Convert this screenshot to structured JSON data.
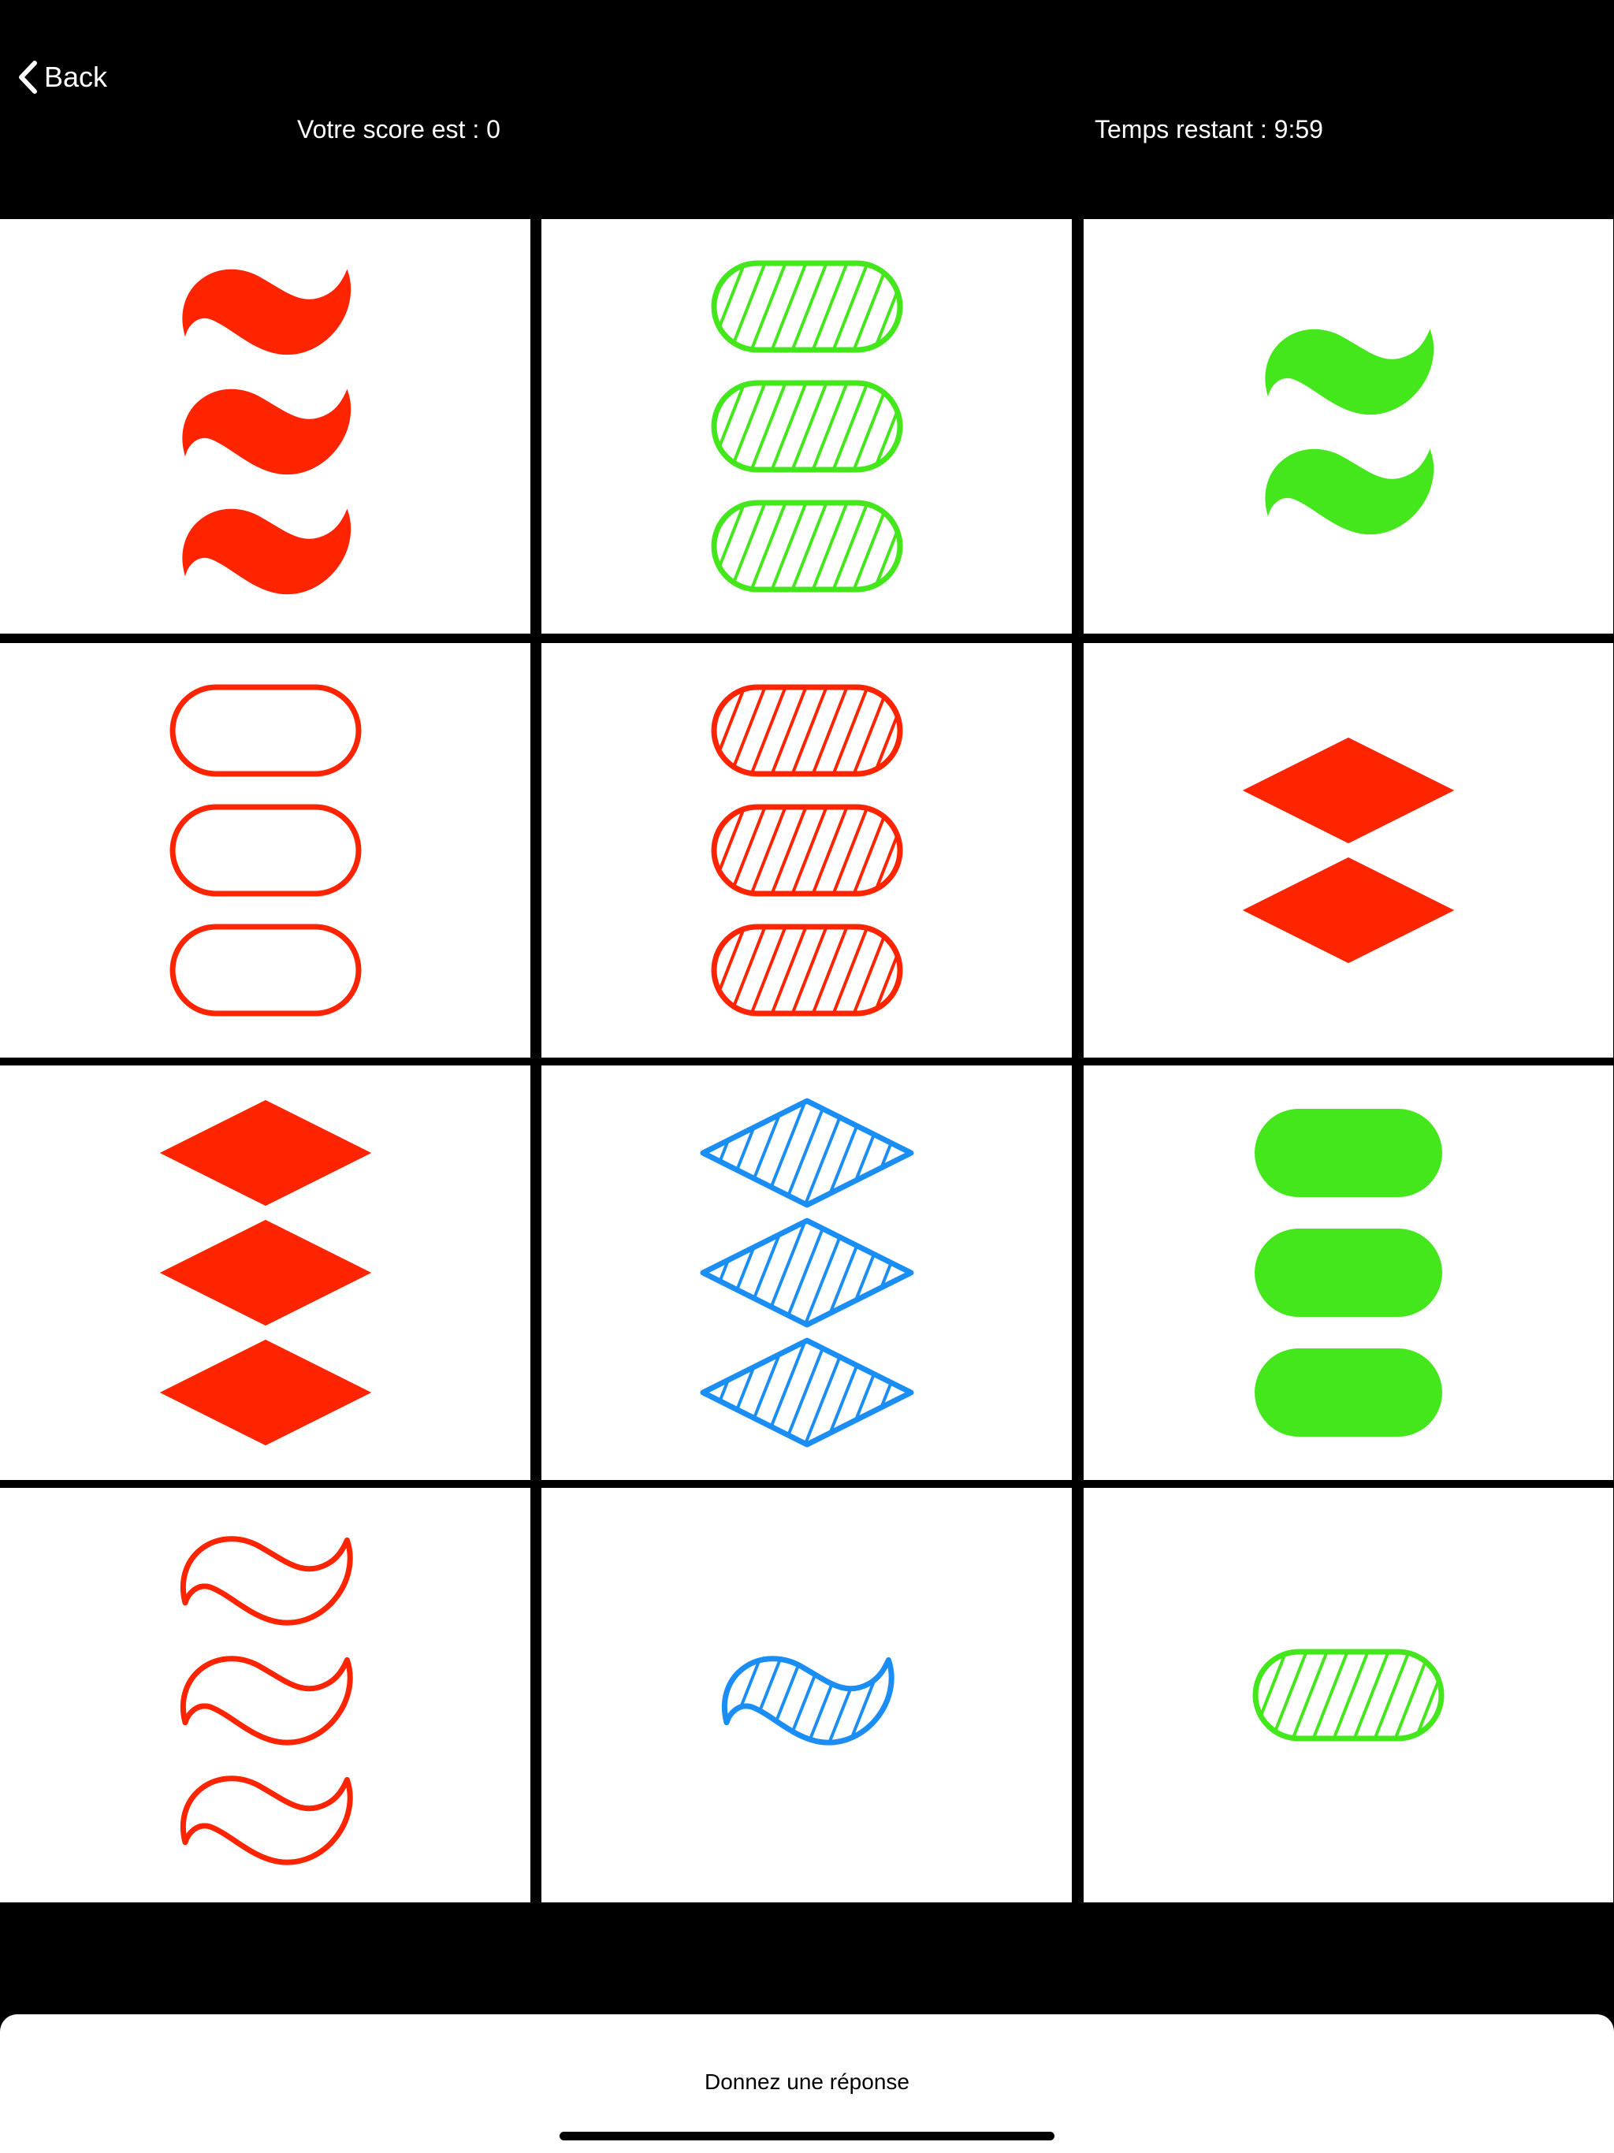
{
  "header": {
    "back_label": "Back",
    "score_text": "Votre score est : 0",
    "timer_text": "Temps restant : 9:59"
  },
  "footer": {
    "answer_label": "Donnez une réponse"
  },
  "colors": {
    "red": "#ff2400",
    "green": "#44e61c",
    "blue": "#1a8ef5",
    "background": "#000000",
    "card": "#ffffff"
  },
  "board": {
    "rows": 4,
    "columns": 3,
    "cards": [
      {
        "count": 3,
        "shape": "squiggle",
        "color": "red",
        "fill": "solid"
      },
      {
        "count": 3,
        "shape": "oval",
        "color": "green",
        "fill": "striped"
      },
      {
        "count": 2,
        "shape": "squiggle",
        "color": "green",
        "fill": "solid"
      },
      {
        "count": 3,
        "shape": "oval",
        "color": "red",
        "fill": "outline"
      },
      {
        "count": 3,
        "shape": "oval",
        "color": "red",
        "fill": "striped"
      },
      {
        "count": 2,
        "shape": "diamond",
        "color": "red",
        "fill": "solid"
      },
      {
        "count": 3,
        "shape": "diamond",
        "color": "red",
        "fill": "solid"
      },
      {
        "count": 3,
        "shape": "diamond",
        "color": "blue",
        "fill": "striped"
      },
      {
        "count": 3,
        "shape": "oval",
        "color": "green",
        "fill": "solid"
      },
      {
        "count": 3,
        "shape": "squiggle",
        "color": "red",
        "fill": "outline"
      },
      {
        "count": 1,
        "shape": "squiggle",
        "color": "blue",
        "fill": "striped"
      },
      {
        "count": 1,
        "shape": "oval",
        "color": "green",
        "fill": "striped"
      }
    ]
  }
}
